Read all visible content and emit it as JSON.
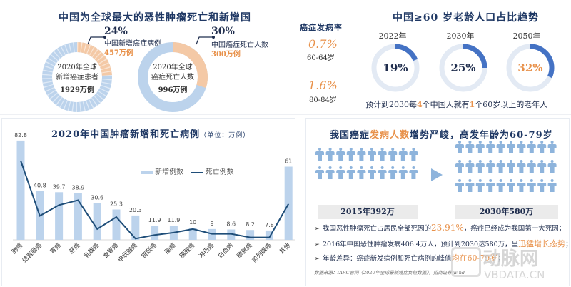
{
  "top_left": {
    "title": "中国为全球最大的恶性肿瘤死亡和新增国",
    "donut1": {
      "center_line1": "2020年全球",
      "center_line2": "新增癌症患者",
      "center_value": "1929万例",
      "pct": "24%",
      "callout_label": "中国新增癌症病例",
      "callout_value": "457万例",
      "share": 24
    },
    "donut2": {
      "center_line1": "2020年全球",
      "center_line2": "癌症死亡人数",
      "center_value": "996万例",
      "pct": "30%",
      "callout_label": "中国癌症死亡人数",
      "callout_value": "300万例",
      "share": 30
    }
  },
  "incidence": {
    "title": "癌症发病率",
    "items": [
      {
        "value": "0.7%",
        "label": "60-64岁"
      },
      {
        "value": "1.6%",
        "label": "80-84岁"
      }
    ]
  },
  "aging": {
    "title": "中国≥60 岁老龄人口占比趋势",
    "rings": [
      {
        "year": "2022年",
        "pct": "19%",
        "value": 19
      },
      {
        "year": "2030年",
        "pct": "25%",
        "value": 25
      },
      {
        "year": "2050年",
        "pct": "32%",
        "value": 32
      }
    ],
    "footnote_pre": "预计到2030每",
    "footnote_n1": "4",
    "footnote_mid": "个中国人就有",
    "footnote_n2": "1",
    "footnote_post": "个60岁以上的老年人"
  },
  "bar_chart": {
    "title": "2020年中国肿瘤新增和死亡病例",
    "unit": "（单位：万例）",
    "legend_new": "新增例数",
    "legend_death": "死亡例数"
  },
  "chart_data": [
    {
      "type": "bar",
      "title": "2020年中国肿瘤新增和死亡病例（单位：万例）",
      "categories": [
        "肺癌",
        "结直肠癌",
        "胃癌",
        "肝癌",
        "乳腺癌",
        "食管癌",
        "甲状腺癌",
        "宫颈癌",
        "脑癌",
        "胰腺癌",
        "淋巴癌",
        "白血病",
        "膀胱癌",
        "前列腺癌",
        "其他"
      ],
      "series": [
        {
          "name": "新增例数",
          "type": "bar",
          "color": "#bcd3ec",
          "values": [
            82.8,
            40.8,
            39.7,
            38.9,
            30.6,
            25.3,
            20.3,
            11.9,
            11.9,
            10.0,
            9.0,
            8.6,
            8.2,
            7.8,
            61
          ]
        },
        {
          "name": "死亡例数",
          "type": "line",
          "color": "#1f4e79",
          "values": [
            66,
            20,
            29,
            33,
            9,
            19,
            1,
            4,
            6,
            9,
            5,
            5,
            2,
            2,
            30
          ]
        }
      ],
      "legend_position": "top-right",
      "grid": false
    },
    {
      "type": "pie",
      "title": "2020年全球新增癌症患者 1929万例",
      "categories": [
        "中国新增癌症病例",
        "其他"
      ],
      "values": [
        24,
        76
      ]
    },
    {
      "type": "pie",
      "title": "2020年全球癌症死亡人数 996万例",
      "categories": [
        "中国癌症死亡人数",
        "其他"
      ],
      "values": [
        30,
        70
      ]
    },
    {
      "type": "pie",
      "title": "中国≥60岁老龄人口占比趋势",
      "categories": [
        "2022年",
        "2030年",
        "2050年"
      ],
      "values": [
        19,
        25,
        32
      ]
    }
  ],
  "people": {
    "title_pre": "我国癌症",
    "title_highlight": "发病人数",
    "title_post": "增势严峻，高发年龄为60-79岁",
    "left_label": "2015年392万",
    "right_label": "2030年580万",
    "left_count": 20,
    "right_count": 30
  },
  "bullets": [
    {
      "pre": "我国恶性肿瘤死亡占居民全部死因的",
      "hl": "23.91%",
      "post": "，癌症已经成为我国第一大死因；"
    },
    {
      "pre": "2016年中国恶性肿瘤发病406.4万人，预计到2030达580万，呈",
      "hl": "迅猛增长态势",
      "post": "；"
    },
    {
      "pre": "年龄差异：癌症新发病例和死亡病例的峰值",
      "hl": "均在60-79岁",
      "post": "；"
    }
  ],
  "source": "数据来源：IARC官网《2020年全球最新癌症负担数据》，招商证券 wind",
  "watermark": {
    "cn": "动脉网",
    "en": "VBDATA.CN"
  },
  "colors": {
    "navy": "#1f3864",
    "orange": "#e8914a",
    "light_blue": "#bcd3ec",
    "ring_blue": "#4472c4",
    "ring_bg": "#e3eaf4",
    "people": "#8eb4dc"
  }
}
